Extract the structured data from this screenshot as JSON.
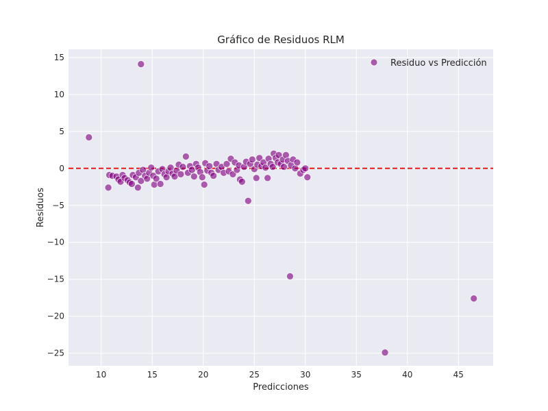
{
  "chart_data": {
    "type": "scatter",
    "title": "Gráfico de Residuos RLM",
    "xlabel": "Predicciones",
    "ylabel": "Residuos",
    "xlim": [
      6.8,
      48.4
    ],
    "ylim": [
      -26.7,
      16.1
    ],
    "xticks": [
      10,
      15,
      20,
      25,
      30,
      35,
      40,
      45
    ],
    "yticks": [
      15,
      10,
      5,
      0,
      -5,
      -10,
      -15,
      -20,
      -25
    ],
    "grid": true,
    "legend": {
      "position": "top-right",
      "entries": [
        "Residuo vs Predicción"
      ]
    },
    "reference_line": {
      "y": 0,
      "style": "dashed",
      "color": "#e41a1c"
    },
    "colors": {
      "point": "#800080",
      "background": "#eaeaf2",
      "grid": "#ffffff"
    },
    "series": [
      {
        "name": "Residuo vs Predicción",
        "points": [
          [
            13.9,
            14.1
          ],
          [
            8.8,
            4.2
          ],
          [
            10.7,
            -2.6
          ],
          [
            10.8,
            -0.9
          ],
          [
            11.1,
            -1.0
          ],
          [
            11.5,
            -1.1
          ],
          [
            11.7,
            -1.5
          ],
          [
            11.9,
            -1.8
          ],
          [
            12.1,
            -0.9
          ],
          [
            12.3,
            -1.3
          ],
          [
            12.6,
            -1.6
          ],
          [
            12.8,
            -1.9
          ],
          [
            13.0,
            -2.1
          ],
          [
            13.1,
            -0.9
          ],
          [
            13.4,
            -1.2
          ],
          [
            13.6,
            -2.6
          ],
          [
            13.7,
            -0.6
          ],
          [
            13.9,
            -1.7
          ],
          [
            14.1,
            -0.2
          ],
          [
            14.3,
            -1.0
          ],
          [
            14.5,
            -1.4
          ],
          [
            14.7,
            -0.6
          ],
          [
            14.9,
            0.1
          ],
          [
            15.1,
            -1.0
          ],
          [
            15.2,
            -2.2
          ],
          [
            15.4,
            -1.4
          ],
          [
            15.6,
            -0.4
          ],
          [
            15.8,
            -2.1
          ],
          [
            16.0,
            -0.1
          ],
          [
            16.2,
            -0.8
          ],
          [
            16.4,
            -1.2
          ],
          [
            16.6,
            -0.4
          ],
          [
            16.8,
            0.1
          ],
          [
            17.0,
            -0.7
          ],
          [
            17.2,
            -1.1
          ],
          [
            17.4,
            -0.3
          ],
          [
            17.6,
            0.5
          ],
          [
            17.8,
            -0.8
          ],
          [
            18.0,
            0.2
          ],
          [
            18.3,
            1.6
          ],
          [
            18.5,
            -0.6
          ],
          [
            18.7,
            0.3
          ],
          [
            18.9,
            -0.2
          ],
          [
            19.1,
            -1.1
          ],
          [
            19.3,
            0.6
          ],
          [
            19.5,
            0.1
          ],
          [
            19.7,
            -0.5
          ],
          [
            19.9,
            -1.2
          ],
          [
            20.1,
            -2.2
          ],
          [
            20.2,
            0.7
          ],
          [
            20.4,
            -0.3
          ],
          [
            20.6,
            0.3
          ],
          [
            20.8,
            -0.6
          ],
          [
            21.0,
            -1.0
          ],
          [
            21.3,
            0.6
          ],
          [
            21.5,
            -0.2
          ],
          [
            21.8,
            0.2
          ],
          [
            22.0,
            -0.6
          ],
          [
            22.3,
            0.6
          ],
          [
            22.5,
            -0.4
          ],
          [
            22.7,
            1.3
          ],
          [
            22.9,
            -0.8
          ],
          [
            23.1,
            0.8
          ],
          [
            23.3,
            -0.2
          ],
          [
            23.5,
            0.4
          ],
          [
            23.6,
            -1.5
          ],
          [
            23.8,
            -1.8
          ],
          [
            24.0,
            0.2
          ],
          [
            24.2,
            0.9
          ],
          [
            24.4,
            -4.4
          ],
          [
            24.6,
            0.6
          ],
          [
            24.8,
            1.2
          ],
          [
            25.0,
            -0.1
          ],
          [
            25.2,
            -1.3
          ],
          [
            25.3,
            0.5
          ],
          [
            25.5,
            1.4
          ],
          [
            25.7,
            0.3
          ],
          [
            25.9,
            0.8
          ],
          [
            26.1,
            0.1
          ],
          [
            26.3,
            -1.3
          ],
          [
            26.4,
            1.3
          ],
          [
            26.6,
            0.6
          ],
          [
            26.8,
            0.2
          ],
          [
            26.9,
            2.0
          ],
          [
            27.1,
            1.4
          ],
          [
            27.3,
            0.8
          ],
          [
            27.4,
            1.8
          ],
          [
            27.6,
            0.6
          ],
          [
            27.8,
            1.2
          ],
          [
            27.9,
            0.2
          ],
          [
            28.1,
            1.8
          ],
          [
            28.3,
            1.0
          ],
          [
            28.5,
            -14.6
          ],
          [
            28.6,
            0.4
          ],
          [
            28.8,
            1.2
          ],
          [
            29.0,
            0.0
          ],
          [
            29.2,
            0.8
          ],
          [
            29.5,
            -0.7
          ],
          [
            29.8,
            -0.2
          ],
          [
            30.0,
            0.0
          ],
          [
            30.2,
            -1.2
          ],
          [
            37.8,
            -24.9
          ],
          [
            46.5,
            -17.6
          ]
        ]
      }
    ]
  }
}
